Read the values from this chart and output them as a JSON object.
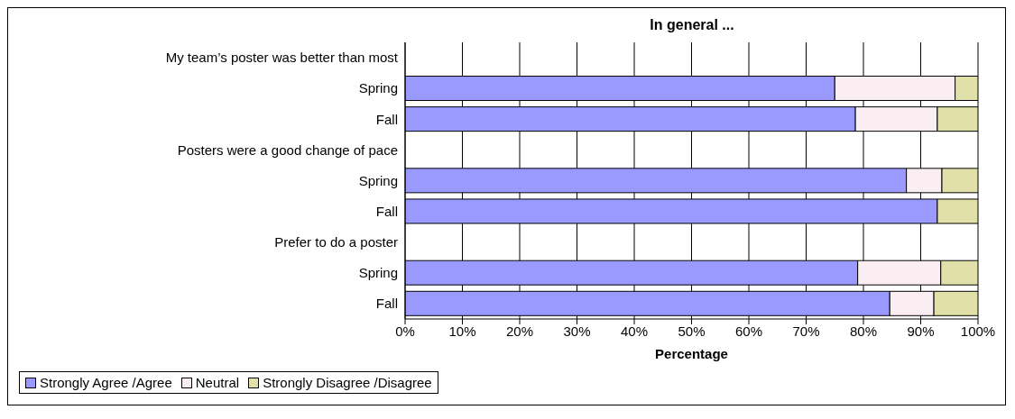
{
  "chart_data": {
    "type": "bar",
    "orientation": "horizontal",
    "stacked": true,
    "title": "In general ...",
    "xlabel": "Percentage",
    "categories": [
      "My team’s poster was better than most",
      "Spring",
      "Fall",
      "Posters were a good change of pace",
      "Spring",
      "Fall",
      "Prefer to do a poster",
      "Spring",
      "Fall"
    ],
    "series": [
      {
        "name": "Strongly Agree /Agree",
        "color": "#9999ff",
        "values": [
          null,
          75,
          78.6,
          null,
          87.5,
          92.9,
          null,
          79,
          84.6
        ]
      },
      {
        "name": "Neutral",
        "color": "#fbeef2",
        "values": [
          null,
          21,
          14.3,
          null,
          6.2,
          null,
          null,
          14.5,
          7.7
        ]
      },
      {
        "name": "Strongly Disagree /Disagree",
        "color": "#e0e0a8",
        "values": [
          null,
          4,
          7.1,
          null,
          6.3,
          7.1,
          null,
          6.5,
          7.7
        ]
      }
    ],
    "xlim": [
      0,
      100
    ],
    "xticks": [
      {
        "value": 0,
        "label": "0%"
      },
      {
        "value": 10,
        "label": "10%"
      },
      {
        "value": 20,
        "label": "20%"
      },
      {
        "value": 30,
        "label": "30%"
      },
      {
        "value": 40,
        "label": "40%"
      },
      {
        "value": 50,
        "label": "50%"
      },
      {
        "value": 60,
        "label": "60%"
      },
      {
        "value": 70,
        "label": "70%"
      },
      {
        "value": 80,
        "label": "80%"
      },
      {
        "value": 90,
        "label": "90%"
      },
      {
        "value": 100,
        "label": "100%"
      }
    ],
    "grid": "x",
    "legend": "bottom left"
  }
}
